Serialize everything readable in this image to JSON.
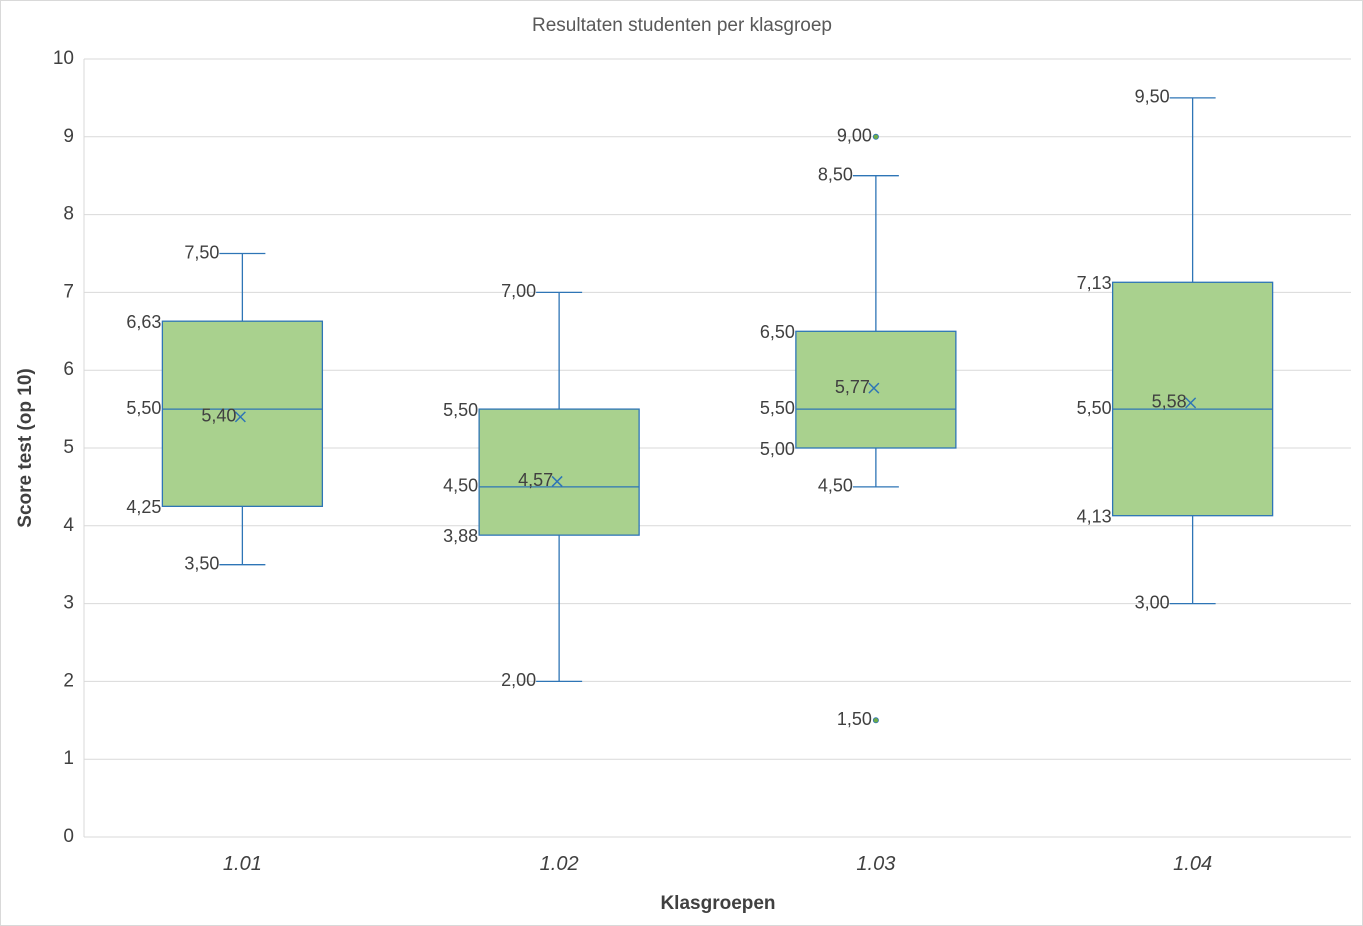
{
  "chart_data": {
    "type": "box",
    "title": "Resultaten studenten per klasgroep",
    "xlabel": "Klasgroepen",
    "ylabel": "Score test (op 10)",
    "ylim": [
      0,
      10
    ],
    "yticks": [
      "0",
      "1",
      "2",
      "3",
      "4",
      "5",
      "6",
      "7",
      "8",
      "9",
      "10"
    ],
    "grid": true,
    "legend": "none",
    "colors": {
      "box_fill": "#a9d18e",
      "box_stroke": "#2e75b6",
      "whisker": "#2e75b6",
      "mean_marker": "#2e75b6",
      "outlier": "#70ad47",
      "grid": "#d9d9d9"
    },
    "categories": [
      "1.01",
      "1.02",
      "1.03",
      "1.04"
    ],
    "boxes": [
      {
        "category": "1.01",
        "min": 3.5,
        "q1": 4.25,
        "median": 5.5,
        "q3": 6.63,
        "max": 7.5,
        "mean": 5.4,
        "outliers": [],
        "labels": {
          "min": "3,50",
          "q1": "4,25",
          "median": "5,50",
          "q3": "6,63",
          "max": "7,50",
          "mean": "5,40"
        },
        "outlier_labels": []
      },
      {
        "category": "1.02",
        "min": 2.0,
        "q1": 3.88,
        "median": 4.5,
        "q3": 5.5,
        "max": 7.0,
        "mean": 4.57,
        "outliers": [],
        "labels": {
          "min": "2,00",
          "q1": "3,88",
          "median": "4,50",
          "q3": "5,50",
          "max": "7,00",
          "mean": "4,57"
        },
        "outlier_labels": []
      },
      {
        "category": "1.03",
        "min": 4.5,
        "q1": 5.0,
        "median": 5.5,
        "q3": 6.5,
        "max": 8.5,
        "mean": 5.77,
        "outliers": [
          9.0,
          1.5
        ],
        "labels": {
          "min": "4,50",
          "q1": "5,00",
          "median": "5,50",
          "q3": "6,50",
          "max": "8,50",
          "mean": "5,77"
        },
        "outlier_labels": [
          "9,00",
          "1,50"
        ]
      },
      {
        "category": "1.04",
        "min": 3.0,
        "q1": 4.13,
        "median": 5.5,
        "q3": 7.13,
        "max": 9.5,
        "mean": 5.58,
        "outliers": [],
        "labels": {
          "min": "3,00",
          "q1": "4,13",
          "median": "5,50",
          "q3": "7,13",
          "max": "9,50",
          "mean": "5,58"
        },
        "outlier_labels": []
      }
    ]
  }
}
